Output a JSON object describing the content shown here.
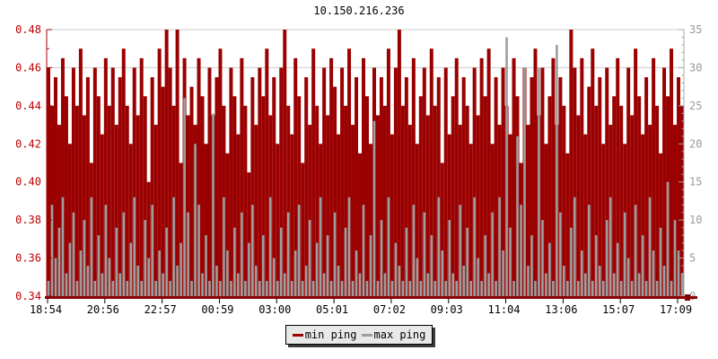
{
  "title": "10.150.216.236",
  "legend": {
    "items": [
      {
        "label": "min ping",
        "color": "#9a0000"
      },
      {
        "label": "max ping",
        "color": "#9e9e9e"
      }
    ]
  },
  "left_axis": {
    "color": "#c00000",
    "min": 0.34,
    "max": 0.48,
    "major_step": 0.02,
    "minor_step": 0.01,
    "tick_labels": [
      "0.48",
      "0.46",
      "0.44",
      "0.42",
      "0.40",
      "0.38",
      "0.36",
      "0.34"
    ]
  },
  "right_axis": {
    "color": "#999999",
    "min": 0,
    "max": 35,
    "major_step": 5,
    "minor_step": 1,
    "tick_labels": [
      "35",
      "30",
      "25",
      "20",
      "15",
      "10",
      "5",
      "0"
    ]
  },
  "x_axis": {
    "color": "#000000",
    "labels": [
      "18:54",
      "20:56",
      "22:57",
      "00:59",
      "03:00",
      "05:01",
      "07:02",
      "09:03",
      "11:04",
      "13:06",
      "15:07",
      "17:09"
    ]
  },
  "grid": {
    "color": "#cccccc",
    "h_lines_left_values": [
      0.48,
      0.46
    ]
  },
  "colors": {
    "min_bar": "#9a0000",
    "max_bar": "#9e9e9e",
    "left_spine": "#aa0000",
    "right_spine": "#a8a8a8",
    "bottom_spine": "#8b0101",
    "bottom_tick": "#000000",
    "title_text": "#000000",
    "background": "#ffffff",
    "legend_bg": "#e8e8e8"
  },
  "chart_data": {
    "type": "bar",
    "title": "10.150.216.236",
    "x_time_span_hours": 24,
    "x_tick_labels": [
      "18:54",
      "20:56",
      "22:57",
      "00:59",
      "03:00",
      "05:01",
      "07:02",
      "09:03",
      "11:04",
      "13:06",
      "15:07",
      "17:09"
    ],
    "left_ylim": [
      0.34,
      0.48
    ],
    "right_ylim": [
      0,
      35
    ],
    "grid": "horizontal-only",
    "legend_position": "bottom-center",
    "series": [
      {
        "name": "min ping",
        "axis": "left",
        "color": "#9a0000",
        "values": [
          0.46,
          0.44,
          0.455,
          0.43,
          0.465,
          0.445,
          0.42,
          0.46,
          0.44,
          0.47,
          0.435,
          0.455,
          0.41,
          0.46,
          0.445,
          0.425,
          0.465,
          0.44,
          0.46,
          0.43,
          0.455,
          0.47,
          0.44,
          0.42,
          0.46,
          0.435,
          0.465,
          0.445,
          0.4,
          0.455,
          0.43,
          0.47,
          0.45,
          0.48,
          0.46,
          0.44,
          0.48,
          0.41,
          0.465,
          0.435,
          0.45,
          0.43,
          0.465,
          0.445,
          0.42,
          0.46,
          0.435,
          0.455,
          0.47,
          0.44,
          0.415,
          0.46,
          0.445,
          0.425,
          0.465,
          0.44,
          0.405,
          0.455,
          0.43,
          0.46,
          0.445,
          0.47,
          0.435,
          0.455,
          0.42,
          0.46,
          0.48,
          0.44,
          0.425,
          0.465,
          0.445,
          0.41,
          0.455,
          0.43,
          0.47,
          0.44,
          0.42,
          0.46,
          0.435,
          0.465,
          0.45,
          0.425,
          0.46,
          0.44,
          0.47,
          0.43,
          0.455,
          0.415,
          0.465,
          0.445,
          0.42,
          0.46,
          0.435,
          0.455,
          0.44,
          0.47,
          0.425,
          0.46,
          0.48,
          0.44,
          0.455,
          0.43,
          0.465,
          0.42,
          0.445,
          0.46,
          0.435,
          0.47,
          0.44,
          0.455,
          0.41,
          0.46,
          0.425,
          0.445,
          0.465,
          0.43,
          0.455,
          0.44,
          0.42,
          0.46,
          0.435,
          0.465,
          0.445,
          0.47,
          0.42,
          0.455,
          0.43,
          0.46,
          0.44,
          0.425,
          0.465,
          0.445,
          0.41,
          0.46,
          0.43,
          0.455,
          0.47,
          0.435,
          0.46,
          0.42,
          0.445,
          0.465,
          0.43,
          0.455,
          0.44,
          0.415,
          0.48,
          0.46,
          0.435,
          0.465,
          0.425,
          0.45,
          0.47,
          0.44,
          0.455,
          0.42,
          0.46,
          0.43,
          0.445,
          0.465,
          0.44,
          0.42,
          0.46,
          0.435,
          0.47,
          0.445,
          0.425,
          0.455,
          0.43,
          0.465,
          0.44,
          0.415,
          0.46,
          0.445,
          0.47,
          0.43,
          0.455,
          0.44
        ]
      },
      {
        "name": "max ping",
        "axis": "right",
        "color": "#9e9e9e",
        "values": [
          2,
          12,
          5,
          9,
          13,
          3,
          7,
          11,
          2,
          6,
          10,
          4,
          13,
          2,
          8,
          3,
          12,
          5,
          2,
          9,
          3,
          11,
          2,
          7,
          13,
          4,
          2,
          10,
          5,
          12,
          2,
          6,
          3,
          9,
          2,
          13,
          4,
          7,
          26,
          11,
          2,
          20,
          12,
          3,
          8,
          2,
          24,
          4,
          2,
          13,
          6,
          2,
          9,
          3,
          11,
          2,
          7,
          12,
          4,
          2,
          8,
          2,
          13,
          5,
          2,
          9,
          3,
          11,
          2,
          6,
          12,
          2,
          4,
          10,
          2,
          7,
          13,
          3,
          8,
          2,
          11,
          4,
          2,
          9,
          13,
          2,
          6,
          3,
          12,
          2,
          8,
          23,
          2,
          10,
          3,
          13,
          2,
          7,
          4,
          2,
          9,
          2,
          12,
          5,
          2,
          11,
          3,
          8,
          2,
          13,
          6,
          2,
          10,
          3,
          2,
          12,
          4,
          9,
          2,
          13,
          5,
          2,
          8,
          3,
          11,
          2,
          13,
          6,
          34,
          9,
          2,
          21,
          12,
          30,
          4,
          8,
          2,
          30,
          10,
          3,
          7,
          2,
          33,
          11,
          4,
          2,
          9,
          13,
          2,
          6,
          3,
          12,
          2,
          8,
          4,
          2,
          10,
          13,
          3,
          7,
          2,
          11,
          5,
          2,
          12,
          3,
          8,
          2,
          13,
          6,
          2,
          9,
          4,
          15,
          2,
          10,
          6,
          3
        ]
      }
    ]
  }
}
